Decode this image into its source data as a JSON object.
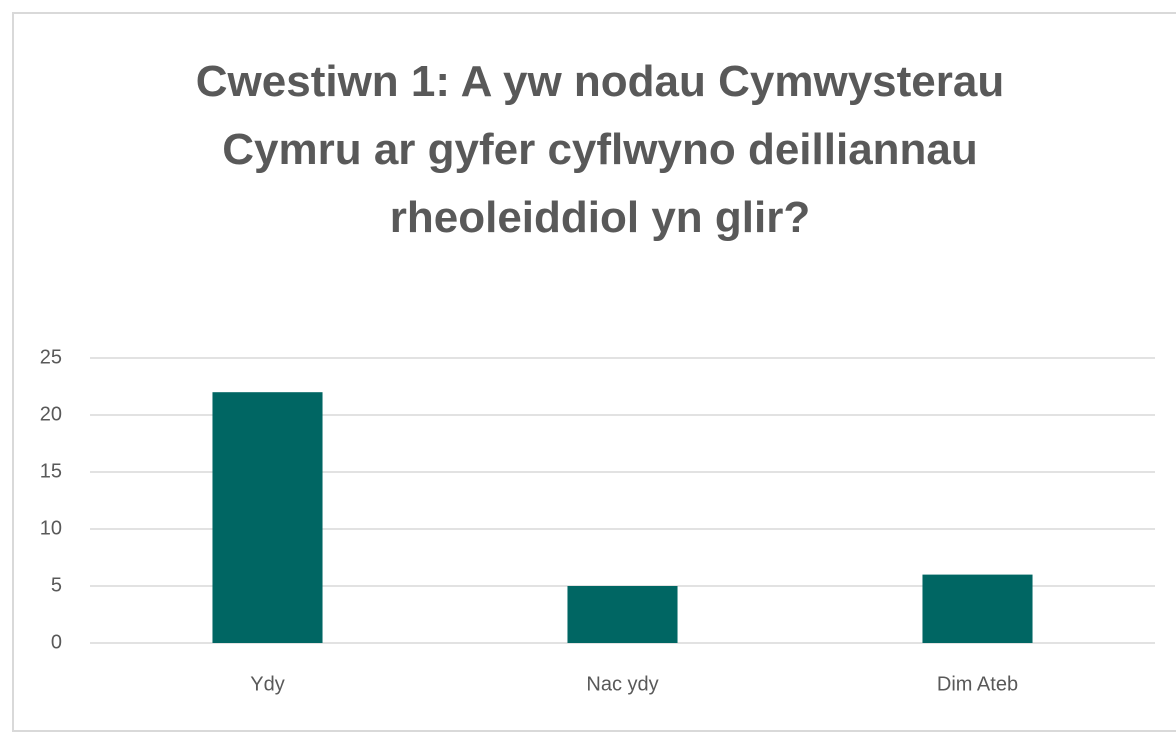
{
  "chart_data": {
    "type": "bar",
    "title": "Cwestiwn 1: A yw nodau Cymwysterau Cymru ar gyfer cyflwyno deilliannau rheoleiddiol yn glir?",
    "categories": [
      "Ydy",
      "Nac ydy",
      "Dim Ateb"
    ],
    "values": [
      22,
      5,
      6
    ],
    "color": "#006663",
    "ylim": [
      0,
      25
    ],
    "yticks": [
      0,
      5,
      10,
      15,
      20,
      25
    ],
    "grid": true
  }
}
